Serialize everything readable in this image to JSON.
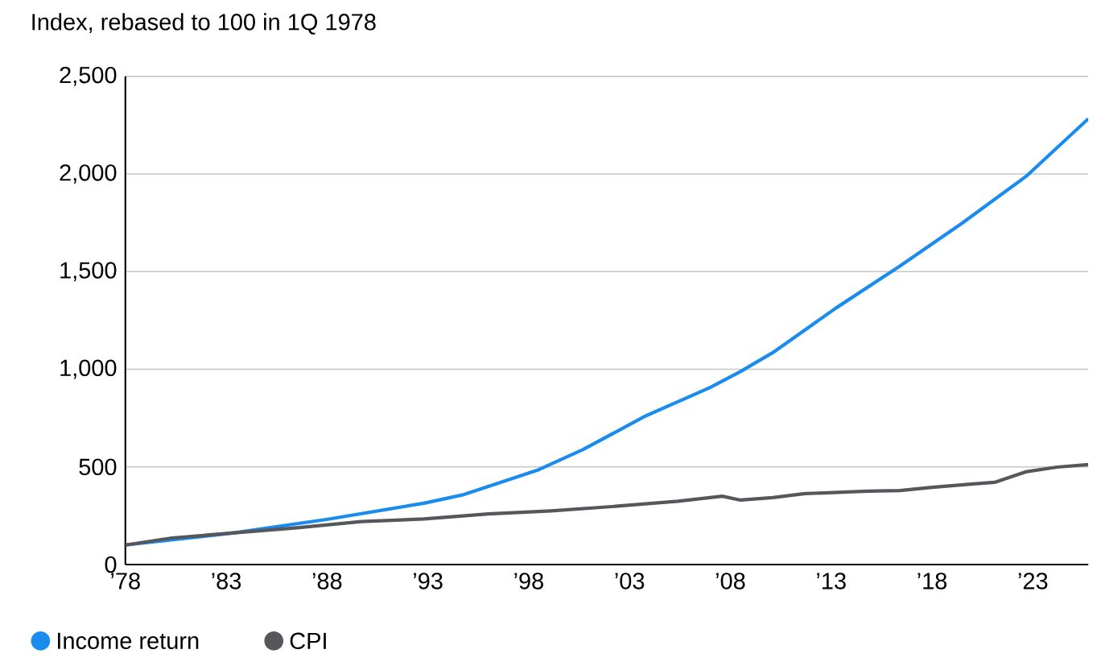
{
  "chart_data": {
    "type": "line",
    "title": "Index, rebased to 100 in 1Q 1978",
    "x": [
      1978,
      1983.4,
      1988.1,
      1992.8,
      1994.7,
      1998.5,
      2000.7,
      2003.8,
      2007.0,
      2008.5,
      2010.1,
      2013.2,
      2016.4,
      2019.5,
      2022.7,
      2025.75
    ],
    "series": [
      {
        "name": "Income return",
        "color": "#1a8cf0",
        "values": [
          100,
          162,
          233,
          314,
          356,
          486,
          589,
          761,
          907,
          988,
          1085,
          1311,
          1528,
          1749,
          1991,
          2283
        ]
      },
      {
        "name": "CPI",
        "color": "#55575a",
        "x": [
          1978,
          1980.3,
          1983.4,
          1986.5,
          1989.7,
          1992.8,
          1996.0,
          1999.1,
          2002.3,
          2005.4,
          2007.6,
          2008.5,
          2010.1,
          2011.7,
          2014.8,
          2016.4,
          2018.0,
          2019.8,
          2021.1,
          2022.7,
          2024.2,
          2025.75
        ],
        "values": [
          100,
          136,
          162,
          188,
          220,
          233,
          259,
          275,
          298,
          324,
          350,
          330,
          343,
          363,
          376,
          379,
          395,
          411,
          421,
          476,
          499,
          512
        ]
      }
    ],
    "xlim": [
      1978,
      2025.75
    ],
    "xticks": [
      {
        "value": 1978,
        "label": "’78"
      },
      {
        "value": 1983,
        "label": "’83"
      },
      {
        "value": 1988,
        "label": "’88"
      },
      {
        "value": 1993,
        "label": "’93"
      },
      {
        "value": 1998,
        "label": "’98"
      },
      {
        "value": 2003,
        "label": "’03"
      },
      {
        "value": 2008,
        "label": "’08"
      },
      {
        "value": 2013,
        "label": "’13"
      },
      {
        "value": 2018,
        "label": "’18"
      },
      {
        "value": 2023,
        "label": "’23"
      }
    ],
    "ylim": [
      0,
      2500
    ],
    "yticks": [
      0,
      500,
      {
        "value": 1000,
        "label": "1,000"
      },
      {
        "value": 1500,
        "label": "1,500"
      },
      {
        "value": 2000,
        "label": "2,000"
      },
      {
        "value": 2500,
        "label": "2,500"
      }
    ],
    "grid": "y",
    "legend": "bottom left",
    "marker": "none",
    "line_style": "solid"
  }
}
